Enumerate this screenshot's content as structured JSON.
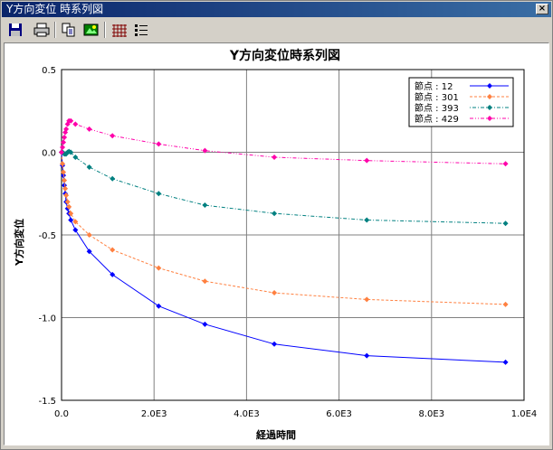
{
  "window": {
    "title": "Y方向変位 時系列図",
    "close_label": "×"
  },
  "toolbar": {
    "buttons": [
      {
        "name": "save-icon"
      },
      {
        "name": "print-icon"
      },
      {
        "name": "copy-icon"
      },
      {
        "name": "export-image-icon"
      },
      {
        "name": "grid-icon"
      },
      {
        "name": "legend-list-icon"
      }
    ]
  },
  "colors": {
    "node12": "#0000ff",
    "node301": "#ff8040",
    "node393": "#008080",
    "node429": "#ff00aa"
  },
  "chart_data": {
    "type": "line",
    "title": "Y方向変位時系列図",
    "xlabel": "経過時間",
    "ylabel": "Y方向変位",
    "xlim": [
      0,
      10000
    ],
    "ylim": [
      -1.5,
      0.5
    ],
    "xticks": [
      0,
      2000,
      4000,
      6000,
      8000,
      10000
    ],
    "xtick_labels": [
      "0.0",
      "2.0E3",
      "4.0E3",
      "6.0E3",
      "8.0E3",
      "1.0E4"
    ],
    "yticks": [
      0.5,
      0.0,
      -0.5,
      -1.0,
      -1.5
    ],
    "ytick_labels": [
      "0.5",
      "0.0",
      "-0.5",
      "-1.0",
      "-1.5"
    ],
    "grid": true,
    "legend_position": "top-right",
    "series": [
      {
        "name": "節点 : 12",
        "color": "#0000ff",
        "style": "solid",
        "x": [
          0,
          20,
          40,
          60,
          80,
          100,
          130,
          160,
          200,
          300,
          600,
          1100,
          2100,
          3100,
          4600,
          6600,
          9600
        ],
        "y": [
          0,
          -0.08,
          -0.14,
          -0.2,
          -0.25,
          -0.3,
          -0.34,
          -0.37,
          -0.41,
          -0.47,
          -0.6,
          -0.74,
          -0.93,
          -1.04,
          -1.16,
          -1.23,
          -1.27
        ]
      },
      {
        "name": "節点 : 301",
        "color": "#ff8040",
        "style": "dashed",
        "x": [
          0,
          20,
          40,
          60,
          80,
          100,
          130,
          160,
          200,
          300,
          600,
          1100,
          2100,
          3100,
          4600,
          6600,
          9600
        ],
        "y": [
          0,
          -0.07,
          -0.12,
          -0.17,
          -0.22,
          -0.26,
          -0.3,
          -0.33,
          -0.37,
          -0.42,
          -0.5,
          -0.59,
          -0.7,
          -0.78,
          -0.85,
          -0.89,
          -0.92
        ]
      },
      {
        "name": "節点 : 393",
        "color": "#008080",
        "style": "dashdot",
        "x": [
          0,
          20,
          40,
          60,
          80,
          100,
          130,
          160,
          200,
          300,
          600,
          1100,
          2100,
          3100,
          4600,
          6600,
          9600
        ],
        "y": [
          0,
          0.0,
          -0.005,
          -0.01,
          -0.01,
          -0.01,
          0.0,
          0.005,
          0.0,
          -0.03,
          -0.09,
          -0.16,
          -0.25,
          -0.32,
          -0.37,
          -0.41,
          -0.43
        ]
      },
      {
        "name": "節点 : 429",
        "color": "#ff00aa",
        "style": "dashdotdot",
        "x": [
          0,
          20,
          40,
          60,
          80,
          100,
          130,
          160,
          200,
          300,
          600,
          1100,
          2100,
          3100,
          4600,
          6600,
          9600
        ],
        "y": [
          0,
          0.03,
          0.06,
          0.09,
          0.12,
          0.14,
          0.17,
          0.19,
          0.19,
          0.17,
          0.14,
          0.1,
          0.05,
          0.01,
          -0.03,
          -0.05,
          -0.07
        ]
      }
    ]
  }
}
